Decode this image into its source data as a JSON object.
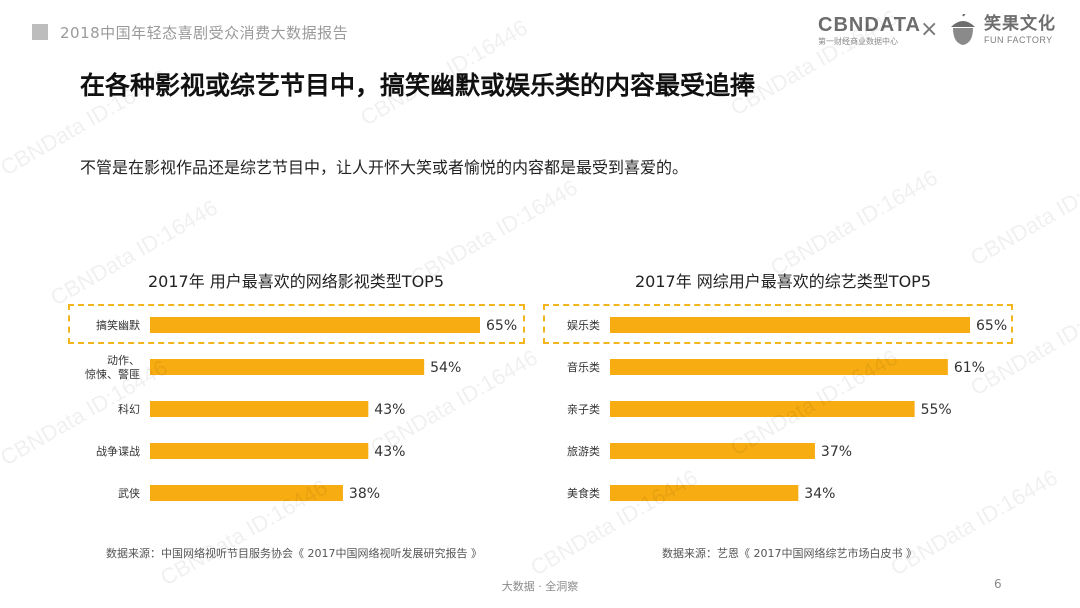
{
  "header": {
    "report_title": "2018中国年轻态喜剧受众消费大数据报告",
    "logo_cbn": "CBNDATA",
    "logo_cbn_sub": "第一财经商业数据中心",
    "logo_separator": "×",
    "logo_fun": "笑果文化",
    "logo_fun_sub": "FUN FACTORY"
  },
  "headline": "在各种影视或综艺节目中，搞笑幽默或娱乐类的内容最受追捧",
  "subtitle": "不管是在影视作品还是综艺节目中，让人开怀大笑或者愉悦的内容都是最受到喜爱的。",
  "watermark": "CBNData ID:16446",
  "footer": {
    "center": "大数据 · 全洞察",
    "page": "6"
  },
  "colors": {
    "bar": "#f7ad12",
    "highlight": "#f2b51e"
  },
  "chart_data": [
    {
      "type": "bar",
      "orientation": "horizontal",
      "title": "2017年 用户最喜欢的网络影视类型TOP5",
      "categories": [
        [
          "搞笑幽默"
        ],
        [
          "动作、",
          "惊悚、警匪"
        ],
        [
          "科幻"
        ],
        [
          "战争谍战"
        ],
        [
          "武侠"
        ]
      ],
      "values": [
        65,
        54,
        43,
        43,
        38
      ],
      "value_labels": [
        "65%",
        "54%",
        "43%",
        "43%",
        "38%"
      ],
      "unit": "%",
      "xlim": [
        0,
        65
      ],
      "highlighted_index": 0,
      "source": "数据来源：中国网络视听节目服务协会《 2017中国网络视听发展研究报告 》"
    },
    {
      "type": "bar",
      "orientation": "horizontal",
      "title": "2017年 网综用户最喜欢的综艺类型TOP5",
      "categories": [
        [
          "娱乐类"
        ],
        [
          "音乐类"
        ],
        [
          "亲子类"
        ],
        [
          "旅游类"
        ],
        [
          "美食类"
        ]
      ],
      "values": [
        65,
        61,
        55,
        37,
        34
      ],
      "value_labels": [
        "65%",
        "61%",
        "55%",
        "37%",
        "34%"
      ],
      "unit": "%",
      "xlim": [
        0,
        65
      ],
      "highlighted_index": 0,
      "source": "数据来源：艺恩《 2017中国网络综艺市场白皮书 》"
    }
  ]
}
